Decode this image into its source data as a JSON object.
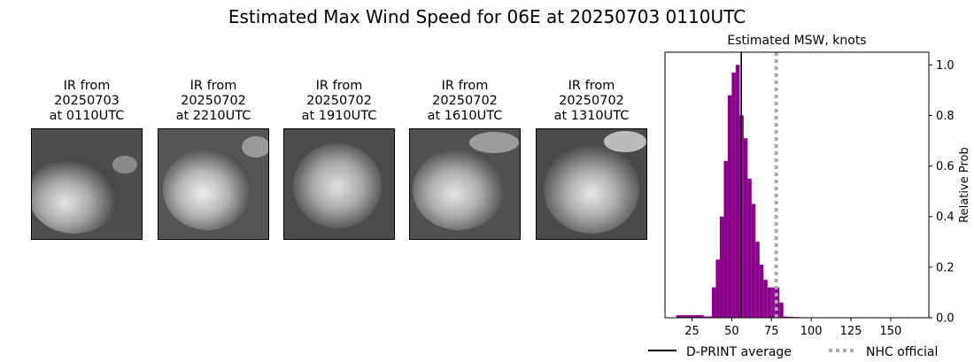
{
  "title": "Estimated Max Wind Speed for 06E at 20250703 0110UTC",
  "ir_panels": [
    {
      "caption": "IR from\n20250703\nat 0110UTC"
    },
    {
      "caption": "IR from\n20250702\nat 2210UTC"
    },
    {
      "caption": "IR from\n20250702\nat 1910UTC"
    },
    {
      "caption": "IR from\n20250702\nat 1610UTC"
    },
    {
      "caption": "IR from\n20250702\nat 1310UTC"
    }
  ],
  "chart_data": {
    "type": "bar",
    "title": "Estimated MSW, knots",
    "xlabel": "",
    "ylabel": "Relative Prob",
    "xlim": [
      8,
      174
    ],
    "ylim": [
      0,
      1.05
    ],
    "x_ticks": [
      25,
      50,
      75,
      100,
      125,
      150
    ],
    "y_ticks": [
      "0.0",
      "0.2",
      "0.4",
      "0.6",
      "0.8",
      "1.0"
    ],
    "bin_width": 2.5,
    "series": [
      {
        "color": "#8b008b",
        "bins": [
          {
            "x": 15,
            "y": 0.01
          },
          {
            "x": 17.5,
            "y": 0.01
          },
          {
            "x": 20,
            "y": 0.01
          },
          {
            "x": 22.5,
            "y": 0.01
          },
          {
            "x": 25,
            "y": 0.01
          },
          {
            "x": 27.5,
            "y": 0.01
          },
          {
            "x": 30,
            "y": 0.01
          },
          {
            "x": 32.5,
            "y": 0.005
          },
          {
            "x": 35,
            "y": 0.005
          },
          {
            "x": 37.5,
            "y": 0.12
          },
          {
            "x": 40,
            "y": 0.23
          },
          {
            "x": 42.5,
            "y": 0.4
          },
          {
            "x": 45,
            "y": 0.62
          },
          {
            "x": 47.5,
            "y": 0.88
          },
          {
            "x": 50,
            "y": 0.97
          },
          {
            "x": 52.5,
            "y": 1.0
          },
          {
            "x": 55,
            "y": 0.8
          },
          {
            "x": 57.5,
            "y": 0.71
          },
          {
            "x": 60,
            "y": 0.55
          },
          {
            "x": 62.5,
            "y": 0.45
          },
          {
            "x": 65,
            "y": 0.3
          },
          {
            "x": 67.5,
            "y": 0.21
          },
          {
            "x": 70,
            "y": 0.15
          },
          {
            "x": 72.5,
            "y": 0.12
          },
          {
            "x": 75,
            "y": 0.12
          },
          {
            "x": 77.5,
            "y": 0.12
          },
          {
            "x": 80,
            "y": 0.06
          },
          {
            "x": 82.5,
            "y": 0.005
          },
          {
            "x": 85,
            "y": 0.004
          },
          {
            "x": 87.5,
            "y": 0.003
          },
          {
            "x": 90,
            "y": 0.003
          },
          {
            "x": 95,
            "y": 0.002
          },
          {
            "x": 100,
            "y": 0.002
          },
          {
            "x": 110,
            "y": 0.002
          },
          {
            "x": 120,
            "y": 0.002
          },
          {
            "x": 130,
            "y": 0.002
          },
          {
            "x": 140,
            "y": 0.002
          },
          {
            "x": 150,
            "y": 0.002
          },
          {
            "x": 160,
            "y": 0.002
          },
          {
            "x": 167.5,
            "y": 0.002
          }
        ]
      }
    ],
    "reference_lines": [
      {
        "name": "D-PRINT average",
        "x": 56,
        "color": "#000000",
        "style": "solid"
      },
      {
        "name": "NHC official",
        "x": 78,
        "color": "#aaaaaa",
        "style": "dotted"
      }
    ],
    "legend_position": "bottom"
  }
}
